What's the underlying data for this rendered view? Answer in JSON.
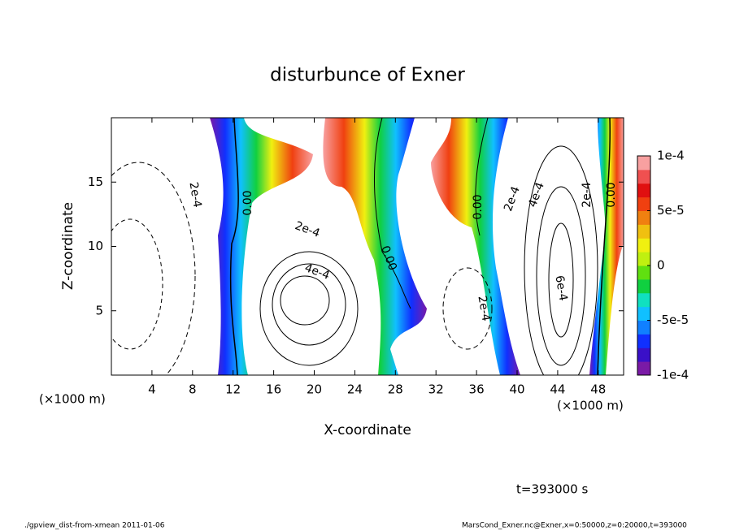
{
  "chart_data": {
    "type": "contour",
    "title": "disturbunce of Exner",
    "xlabel": "X-coordinate",
    "ylabel": "Z-coordinate",
    "x_unit": "(×1000 m)",
    "xlim": [
      0,
      50.5
    ],
    "ylim": [
      0,
      20
    ],
    "xticks": [
      4,
      8,
      12,
      16,
      20,
      24,
      28,
      32,
      36,
      40,
      44,
      48
    ],
    "yticks": [
      5,
      10,
      15
    ],
    "colorbar": {
      "lim": [
        -0.0001,
        0.0001
      ],
      "ticks": [
        {
          "value": 0.0001,
          "label": "1e-4"
        },
        {
          "value": 5e-05,
          "label": "5e-5"
        },
        0,
        {
          "value": -5e-05,
          "label": "-5e-5"
        },
        {
          "value": -0.0001,
          "label": "-1e-4"
        }
      ],
      "colors": [
        "#7a1aa6",
        "#3a10c8",
        "#1030ff",
        "#1080ff",
        "#10c0ff",
        "#10e0c0",
        "#10d040",
        "#60e010",
        "#c0f010",
        "#f0f010",
        "#f0c010",
        "#f08010",
        "#f04010",
        "#e01010",
        "#f05050",
        "#f8a0a0"
      ]
    },
    "contour_labels": [
      "2e-4",
      "0.00",
      "2e-4",
      "4e-4",
      "0.00",
      "2e-4",
      "0.00",
      "2e-4",
      "4e-4",
      "2e-4",
      "0.00",
      "6e-4"
    ],
    "time_label": "t=393000 s",
    "footer_left": "./gpview_dist-from-xmean  2011-01-06",
    "footer_right": "MarsCond_Exner.nc@Exner,x=0:50000,z=0:20000,t=393000"
  }
}
